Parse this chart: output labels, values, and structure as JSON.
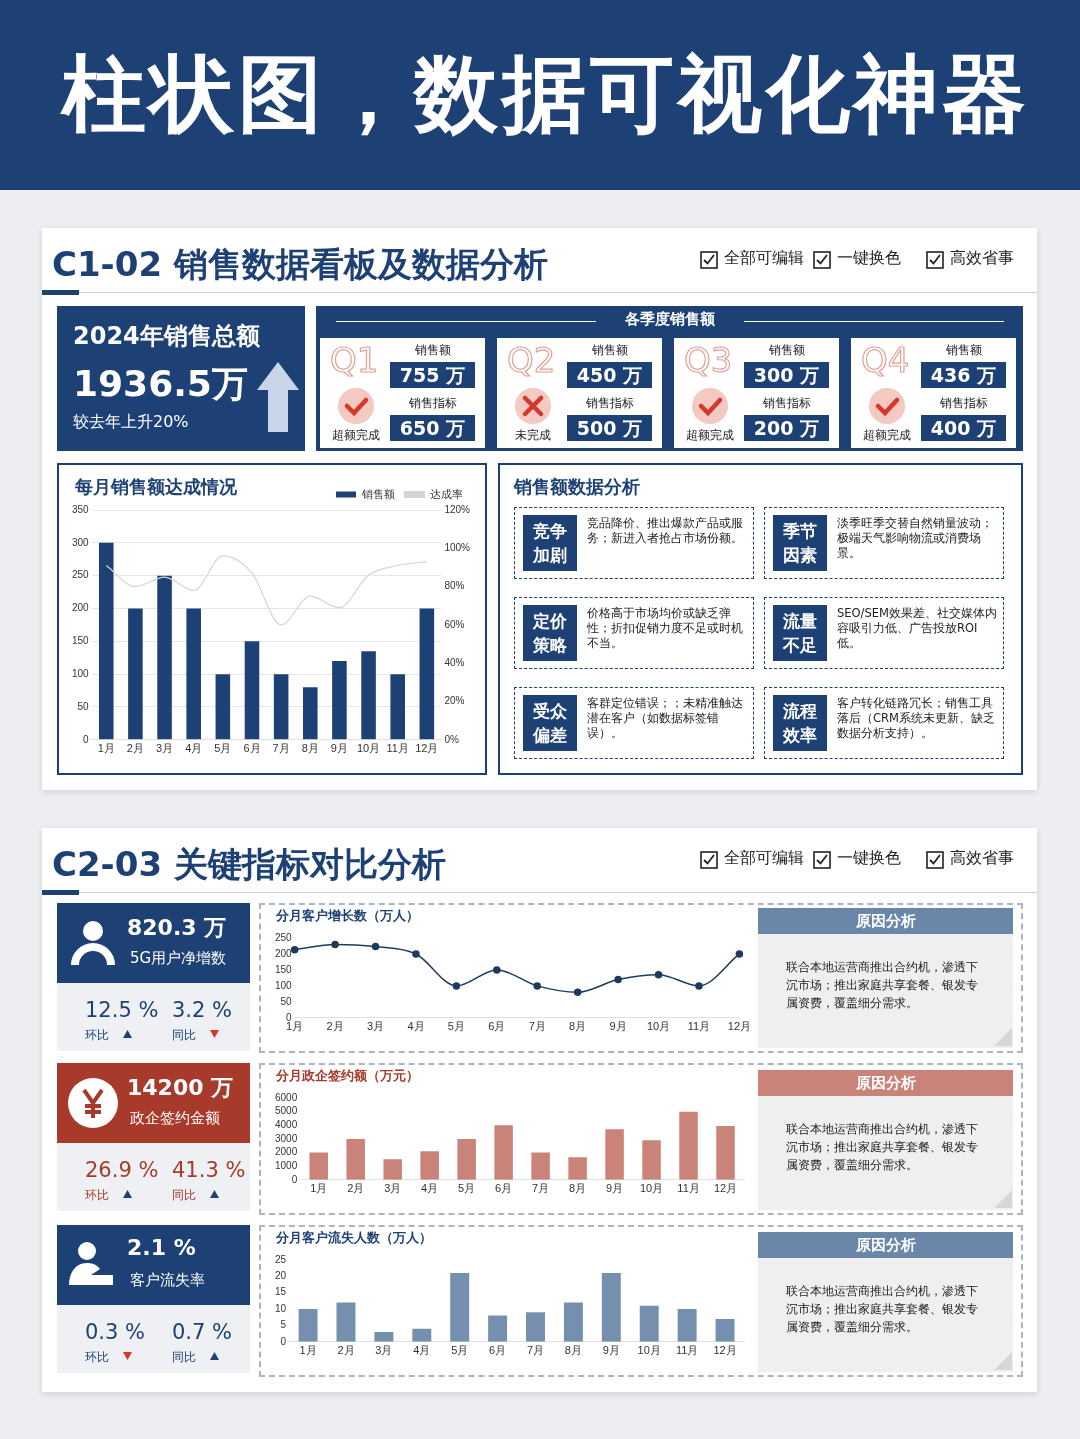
{
  "chart_data": [
    {
      "type": "other",
      "title": "柱状图，数据可视化神器"
    },
    {
      "type": "other",
      "title": "C1-02  销售数据看板及数据分析",
      "annotations": [
        "全部可编辑",
        "一键换色",
        "高效省事"
      ]
    },
    {
      "type": "other",
      "title": "2024年销售总额",
      "annotations": [
        "1936.5万",
        "较去年上升20%"
      ]
    },
    {
      "type": "other",
      "title": "各季度销售额",
      "annotations": [
        "Q1",
        "销售额",
        "755 万",
        "销售指标",
        "650 万",
        "超额完成",
        "Q2",
        "销售额",
        "450 万",
        "销售指标",
        "500 万",
        "未完成",
        "Q3",
        "销售额",
        "300 万",
        "销售指标",
        "200 万",
        "超额完成",
        "Q4",
        "销售额",
        "436 万",
        "销售指标",
        "400 万",
        "超额完成"
      ]
    },
    {
      "type": "bar",
      "title": "每月销售额达成情况",
      "categories": [
        "1月",
        "2月",
        "3月",
        "4月",
        "5月",
        "6月",
        "7月",
        "8月",
        "9月",
        "10月",
        "11月",
        "12月"
      ],
      "series": [
        {
          "name": "销售额",
          "type": "bar",
          "color": "#1e4175",
          "values": [
            300,
            200,
            250,
            200,
            100,
            150,
            100,
            80,
            120,
            135,
            100,
            200
          ]
        },
        {
          "name": "达成率",
          "type": "line",
          "axis": "y2",
          "color": "#d4d4d4",
          "values": [
            91,
            80,
            85,
            78,
            96,
            87,
            60,
            75,
            69,
            86,
            91,
            93
          ]
        }
      ],
      "ylim": [
        0,
        350
      ],
      "yticks": [
        0,
        50,
        100,
        150,
        200,
        250,
        300,
        350
      ],
      "y2lim": [
        0,
        120
      ],
      "y2ticks": [
        {
          "value": 0,
          "label": "0%"
        },
        {
          "value": 20,
          "label": "20%"
        },
        {
          "value": 40,
          "label": "40%"
        },
        {
          "value": 60,
          "label": "60%"
        },
        {
          "value": 80,
          "label": "80%"
        },
        {
          "value": 100,
          "label": "100%"
        },
        {
          "value": 120,
          "label": "120%"
        }
      ],
      "grid": "y",
      "legend": "top right"
    },
    {
      "type": "other",
      "title": "销售额数据分析",
      "annotations": [
        "竞争加剧",
        "竞品降价、推出爆款产品或服务；新进入者抢占市场份额。",
        "季节因素",
        "淡季旺季交替自然销量波动；极端天气影响物流或消费场景。",
        "定价策略",
        "价格高于市场均价或缺乏弹性；折扣促销力度不足或时机不当。",
        "流量不足",
        "SEO/SEM效果差、社交媒体内容吸引力低、广告投放ROI低。",
        "受众偏差",
        "客群定位错误；；未精准触达潜在客户（如数据标签错误）。",
        "流程效率",
        "客户转化链路冗长；销售工具落后（CRM系统未更新、缺乏数据分析支持）。"
      ]
    },
    {
      "type": "other",
      "title": "C2-03 关键指标对比分析",
      "annotations": [
        "全部可编辑",
        "一键换色",
        "高效省事"
      ]
    },
    {
      "type": "other",
      "color": "#1e4175",
      "annotations": [
        "820.3 万",
        "5G用户净增数",
        "12.5 %",
        "环比",
        "3.2 %",
        "同比"
      ]
    },
    {
      "type": "line",
      "title": "分月客户增长数（万人）",
      "categories": [
        "1月",
        "2月",
        "3月",
        "4月",
        "5月",
        "6月",
        "7月",
        "8月",
        "9月",
        "10月",
        "11月",
        "12月"
      ],
      "values": [
        213,
        230,
        223,
        200,
        100,
        150,
        100,
        80,
        120,
        135,
        100,
        200
      ],
      "color": "#1f3a5f",
      "marker": "circle",
      "ylim": [
        0,
        250
      ],
      "yticks": [
        0,
        50,
        100,
        150,
        200,
        250
      ]
    },
    {
      "type": "other",
      "color": "#6a86a8",
      "title": "原因分析",
      "annotations": [
        "联合本地运营商推出合约机，渗透下沉市场；推出家庭共享套餐、银发专属资费，覆盖细分需求。"
      ]
    },
    {
      "type": "other",
      "color": "#a83a2c",
      "annotations": [
        "14200 万",
        "政企签约金额",
        "26.9 %",
        "环比",
        "41.3 %",
        "同比"
      ]
    },
    {
      "type": "bar",
      "title": "分月政企签约额（万元）",
      "categories": [
        "1月",
        "2月",
        "3月",
        "4月",
        "5月",
        "6月",
        "7月",
        "8月",
        "9月",
        "10月",
        "11月",
        "12月"
      ],
      "values": [
        2000,
        3000,
        1500,
        2100,
        3000,
        4000,
        2000,
        1650,
        3700,
        2900,
        5000,
        3950
      ],
      "color": "#c98378",
      "ylim": [
        0,
        6000
      ],
      "yticks": [
        0,
        1000,
        2000,
        3000,
        4000,
        5000,
        6000
      ]
    },
    {
      "type": "other",
      "color": "#c98378",
      "title": "原因分析",
      "annotations": [
        "联合本地运营商推出合约机，渗透下沉市场；推出家庭共享套餐、银发专属资费，覆盖细分需求。"
      ]
    },
    {
      "type": "other",
      "color": "#1e4175",
      "annotations": [
        "2.1 %",
        "客户流失率",
        "0.3 %",
        "环比",
        "0.7 %",
        "同比"
      ]
    },
    {
      "type": "bar",
      "title": "分月客户流失人数（万人）",
      "categories": [
        "1月",
        "2月",
        "3月",
        "4月",
        "5月",
        "6月",
        "7月",
        "8月",
        "9月",
        "10月",
        "11月",
        "12月"
      ],
      "values": [
        10,
        12,
        3,
        4,
        21,
        8,
        9,
        12,
        21,
        11,
        10,
        7
      ],
      "color": "#7590ae",
      "ylim": [
        0,
        25
      ],
      "yticks": [
        0,
        5,
        10,
        15,
        20,
        25
      ]
    },
    {
      "type": "other",
      "color": "#6a86a8",
      "title": "原因分析",
      "annotations": [
        "联合本地运营商推出合约机，渗透下沉市场；推出家庭共享套餐、银发专属资费，覆盖细分需求。"
      ]
    }
  ]
}
